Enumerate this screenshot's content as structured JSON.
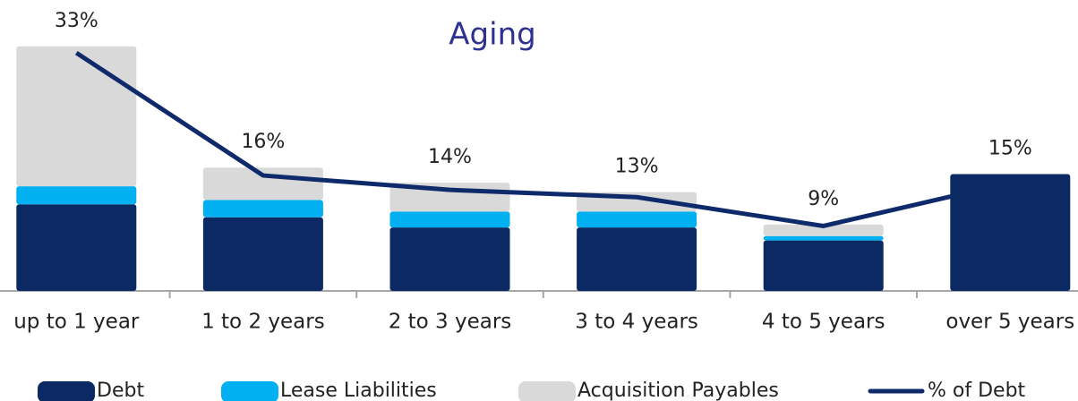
{
  "chart_data": {
    "type": "bar",
    "title": "Aging",
    "categories": [
      "up to 1 year",
      "1 to 2 years",
      "2 to 3 years",
      "3 to 4 years",
      "4 to 5 years",
      "over 5 years"
    ],
    "series": [
      {
        "name": "Debt",
        "color": "#0b2a63",
        "values": [
          12,
          10.2,
          8.8,
          8.8,
          7,
          16.2
        ]
      },
      {
        "name": "Lease Liabilities",
        "color": "#00b0f0",
        "values": [
          2.5,
          2.4,
          2.2,
          2.2,
          0.6,
          0
        ]
      },
      {
        "name": "Acquisition Payables",
        "color": "#d9d9d9",
        "values": [
          19.4,
          4.5,
          4,
          2.7,
          1.6,
          0
        ]
      },
      {
        "name": "% of Debt",
        "type": "line",
        "color": "#0f2a6b",
        "values": [
          33,
          16,
          14,
          13,
          9,
          15
        ],
        "value_labels": [
          "33%",
          "16%",
          "14%",
          "13%",
          "9%",
          "15%"
        ]
      }
    ],
    "ylim": [
      0,
      34
    ]
  }
}
